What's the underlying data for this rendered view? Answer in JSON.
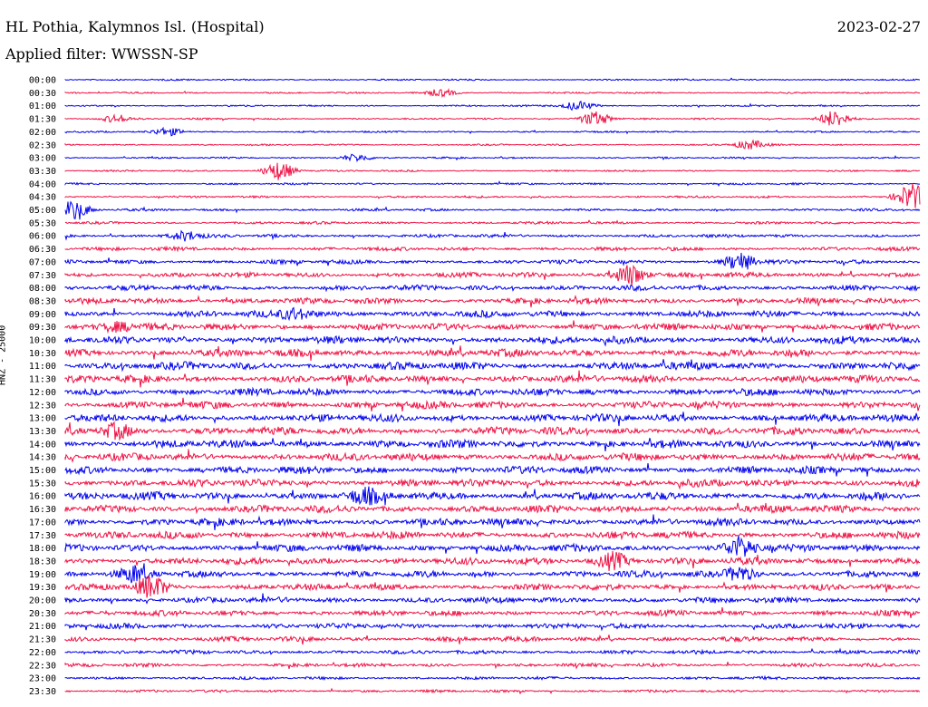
{
  "header": {
    "station": "HL Pothia, Kalymnos Isl. (Hospital)",
    "date": "2023-02-27",
    "filter": "Applied filter: WWSSN-SP"
  },
  "chart_data": {
    "type": "line",
    "title": "HL Pothia, Kalymnos Isl. (Hospital)",
    "ylabel": "HNZ - 25000",
    "xlabel": "",
    "grid": false,
    "colors": [
      "#0000ee",
      "#ee1144"
    ],
    "row_labels": [
      "00:00",
      "00:30",
      "01:00",
      "01:30",
      "02:00",
      "02:30",
      "03:00",
      "03:30",
      "04:00",
      "04:30",
      "05:00",
      "05:30",
      "06:00",
      "06:30",
      "07:00",
      "07:30",
      "08:00",
      "08:30",
      "09:00",
      "09:30",
      "10:00",
      "10:30",
      "11:00",
      "11:30",
      "12:00",
      "12:30",
      "13:00",
      "13:30",
      "14:00",
      "14:30",
      "15:00",
      "15:30",
      "16:00",
      "16:30",
      "17:00",
      "17:30",
      "18:00",
      "18:30",
      "19:00",
      "19:30",
      "20:00",
      "20:30",
      "21:00",
      "21:30",
      "22:00",
      "22:30",
      "23:00",
      "23:30"
    ],
    "noise_level": [
      1,
      1,
      1,
      1,
      1,
      1,
      1,
      1,
      1.2,
      1.3,
      1.5,
      1.6,
      2,
      2.3,
      2.5,
      3,
      3.3,
      3.6,
      4,
      4.2,
      4.5,
      4.6,
      4.8,
      4.6,
      4.4,
      4.4,
      4.6,
      4.8,
      4.8,
      4.6,
      4.6,
      4.6,
      4.8,
      4.6,
      4.4,
      4.4,
      4.4,
      4.2,
      4,
      3.8,
      3.6,
      3.4,
      3.2,
      3,
      2.4,
      2.2,
      1.8,
      1.6
    ],
    "events": [
      {
        "row": 1,
        "at": 0.44,
        "amp": 4
      },
      {
        "row": 2,
        "at": 0.6,
        "amp": 5
      },
      {
        "row": 3,
        "at": 0.06,
        "amp": 4
      },
      {
        "row": 3,
        "at": 0.62,
        "amp": 8
      },
      {
        "row": 3,
        "at": 0.9,
        "amp": 9
      },
      {
        "row": 4,
        "at": 0.12,
        "amp": 4
      },
      {
        "row": 5,
        "at": 0.8,
        "amp": 5
      },
      {
        "row": 6,
        "at": 0.34,
        "amp": 4
      },
      {
        "row": 7,
        "at": 0.25,
        "amp": 10
      },
      {
        "row": 9,
        "at": 0.99,
        "amp": 14
      },
      {
        "row": 10,
        "at": 0.01,
        "amp": 10
      },
      {
        "row": 12,
        "at": 0.14,
        "amp": 5
      },
      {
        "row": 14,
        "at": 0.79,
        "amp": 10
      },
      {
        "row": 15,
        "at": 0.66,
        "amp": 12
      },
      {
        "row": 18,
        "at": 0.27,
        "amp": 6
      },
      {
        "row": 19,
        "at": 0.06,
        "amp": 5
      },
      {
        "row": 27,
        "at": 0.06,
        "amp": 7
      },
      {
        "row": 32,
        "at": 0.35,
        "amp": 7
      },
      {
        "row": 36,
        "at": 0.79,
        "amp": 11
      },
      {
        "row": 37,
        "at": 0.64,
        "amp": 10
      },
      {
        "row": 38,
        "at": 0.08,
        "amp": 7
      },
      {
        "row": 38,
        "at": 0.79,
        "amp": 8
      },
      {
        "row": 39,
        "at": 0.1,
        "amp": 12
      }
    ]
  }
}
